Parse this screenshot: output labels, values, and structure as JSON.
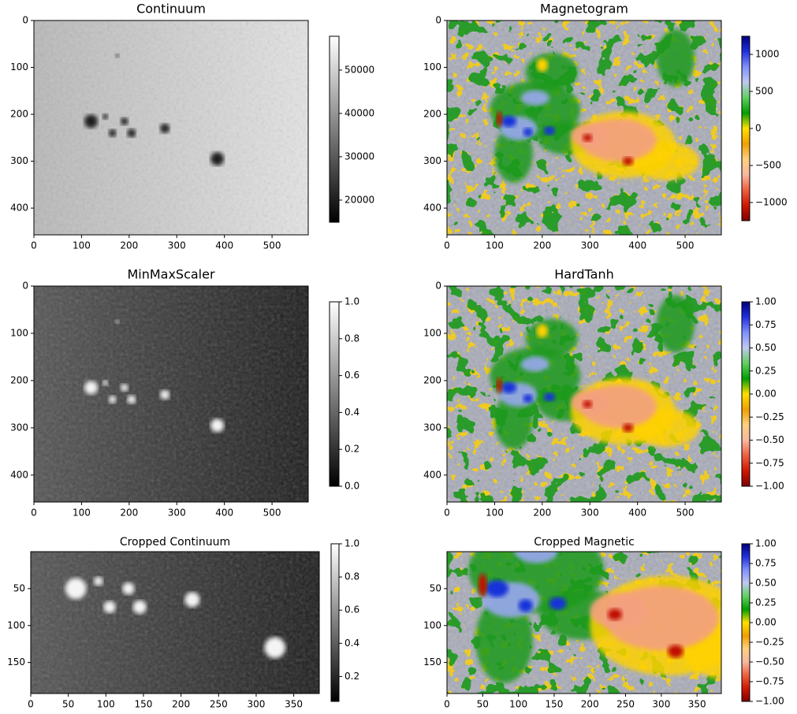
{
  "chart_data": [
    {
      "type": "image",
      "title": "Continuum",
      "xlim": [
        0,
        576
      ],
      "ylim": [
        457,
        0
      ],
      "xticks": [
        0,
        100,
        200,
        300,
        400,
        500
      ],
      "yticks": [
        0,
        100,
        200,
        300,
        400
      ],
      "colormap": [
        "#000000",
        "#ffffff"
      ],
      "colorbar": {
        "lim": [
          14900,
          57800
        ],
        "ticks": [
          20000,
          30000,
          40000,
          50000
        ]
      }
    },
    {
      "type": "image",
      "title": "Magnetogram",
      "xlim": [
        0,
        576
      ],
      "ylim": [
        457,
        0
      ],
      "xticks": [
        0,
        100,
        200,
        300,
        400,
        500
      ],
      "yticks": [
        0,
        100,
        200,
        300,
        400
      ],
      "colormap": [
        "#800000",
        "#d01800",
        "#f06040",
        "#f8b8a0",
        "#ffd080",
        "#f0a000",
        "#ffe000",
        "#00a000",
        "#60d060",
        "#c0c8f0",
        "#8090ff",
        "#2030e0",
        "#000080"
      ],
      "colorbar": {
        "lim": [
          -1245,
          1245
        ],
        "ticks": [
          {
            "value": -1000,
            "label": "−1000"
          },
          {
            "value": -500,
            "label": "−500"
          },
          0,
          500,
          1000
        ]
      }
    },
    {
      "type": "image",
      "title": "MinMaxScaler",
      "xlim": [
        0,
        576
      ],
      "ylim": [
        457,
        0
      ],
      "xticks": [
        0,
        100,
        200,
        300,
        400,
        500
      ],
      "yticks": [
        0,
        100,
        200,
        300,
        400
      ],
      "colormap": [
        "#000000",
        "#ffffff"
      ],
      "colorbar": {
        "lim": [
          0,
          1
        ],
        "ticks": [
          {
            "value": 0,
            "label": "0.0"
          },
          0.2,
          0.4,
          0.6,
          0.8,
          {
            "value": 1,
            "label": "1.0"
          }
        ]
      }
    },
    {
      "type": "image",
      "title": "HardTanh",
      "xlim": [
        0,
        576
      ],
      "ylim": [
        457,
        0
      ],
      "xticks": [
        0,
        100,
        200,
        300,
        400,
        500
      ],
      "yticks": [
        0,
        100,
        200,
        300,
        400
      ],
      "colormap": [
        "#800000",
        "#d01800",
        "#f06040",
        "#f8b8a0",
        "#ffd080",
        "#f0a000",
        "#ffe000",
        "#00a000",
        "#60d060",
        "#c0c8f0",
        "#8090ff",
        "#2030e0",
        "#000080"
      ],
      "colorbar": {
        "lim": [
          -1,
          1
        ],
        "ticks": [
          {
            "value": -1,
            "label": "−1.00"
          },
          {
            "value": -0.75,
            "label": "−0.75"
          },
          {
            "value": -0.5,
            "label": "−0.50"
          },
          {
            "value": -0.25,
            "label": "−0.25"
          },
          {
            "value": 0,
            "label": "0.00"
          },
          {
            "value": 0.25,
            "label": "0.25"
          },
          {
            "value": 0.5,
            "label": "0.50"
          },
          {
            "value": 0.75,
            "label": "0.75"
          },
          {
            "value": 1,
            "label": "1.00"
          }
        ]
      }
    },
    {
      "type": "image",
      "title": "Cropped Continuum",
      "xlim": [
        0,
        384
      ],
      "ylim": [
        192,
        0
      ],
      "xticks": [
        0,
        50,
        100,
        150,
        200,
        250,
        300,
        350
      ],
      "yticks": [
        50,
        100,
        150
      ],
      "colormap": [
        "#000000",
        "#ffffff"
      ],
      "colorbar": {
        "lim": [
          0.05,
          1
        ],
        "ticks": [
          0.2,
          0.4,
          0.6,
          0.8,
          {
            "value": 1,
            "label": "1.0"
          }
        ]
      }
    },
    {
      "type": "image",
      "title": "Cropped Magnetic",
      "xlim": [
        0,
        384
      ],
      "ylim": [
        192,
        0
      ],
      "xticks": [
        0,
        50,
        100,
        150,
        200,
        250,
        300,
        350
      ],
      "yticks": [
        50,
        100,
        150
      ],
      "colormap": [
        "#800000",
        "#d01800",
        "#f06040",
        "#f8b8a0",
        "#ffd080",
        "#f0a000",
        "#ffe000",
        "#00a000",
        "#60d060",
        "#c0c8f0",
        "#8090ff",
        "#2030e0",
        "#000080"
      ],
      "colorbar": {
        "lim": [
          -1,
          1
        ],
        "ticks": [
          {
            "value": -1,
            "label": "−1.00"
          },
          {
            "value": -0.75,
            "label": "−0.75"
          },
          {
            "value": -0.5,
            "label": "−0.50"
          },
          {
            "value": -0.25,
            "label": "−0.25"
          },
          {
            "value": 0,
            "label": "0.00"
          },
          {
            "value": 0.25,
            "label": "0.25"
          },
          {
            "value": 0.5,
            "label": "0.50"
          },
          {
            "value": 0.75,
            "label": "0.75"
          },
          {
            "value": 1,
            "label": "1.00"
          }
        ]
      }
    }
  ]
}
